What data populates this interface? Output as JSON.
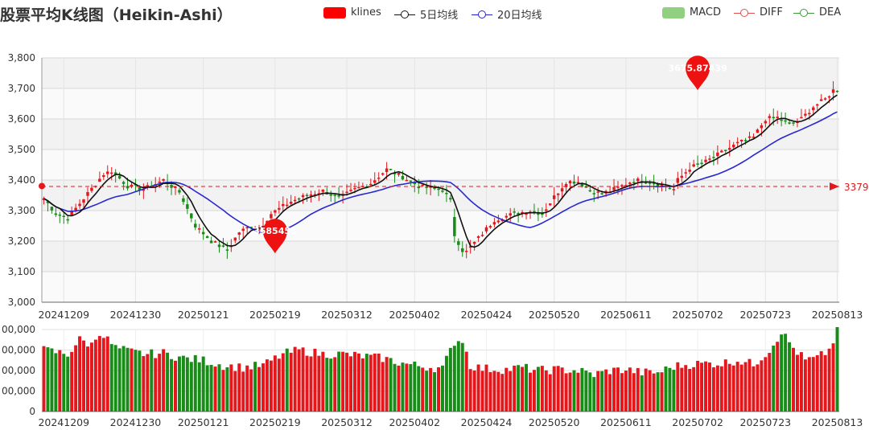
{
  "title": "股票平均K线图（Heikin-Ashi）",
  "legends": [
    {
      "label": "klines",
      "kind": "bar",
      "color": "#ff0000"
    },
    {
      "label": "5日均线",
      "kind": "line",
      "color": "#111111"
    },
    {
      "label": "20日均线",
      "kind": "line",
      "color": "#2222cc"
    },
    {
      "label": "MACD",
      "kind": "bar",
      "color": "#90d080"
    },
    {
      "label": "DIFF",
      "kind": "line",
      "color": "#e05050"
    },
    {
      "label": "DEA",
      "kind": "line",
      "color": "#3a9a3a"
    }
  ],
  "colors": {
    "up": "#e3171c",
    "down": "#178c17",
    "ma5": "#111111",
    "ma20": "#2929cf",
    "markline": "#e3171c",
    "pin": "#ee1111"
  },
  "chart_data": {
    "type": "heikin-ashi candlestick with volume",
    "x_tick_labels": [
      "20241209",
      "20241230",
      "20250121",
      "20250219",
      "20250312",
      "20250402",
      "20250424",
      "20250520",
      "20250611",
      "20250702",
      "20250723",
      "20250813"
    ],
    "price_axis": {
      "ylim": [
        3000,
        3800
      ],
      "ticks": [
        "3,000",
        "3,100",
        "3,200",
        "3,300",
        "3,400",
        "3,500",
        "3,600",
        "3,700",
        "3,800"
      ]
    },
    "volume_axis": {
      "ylim": [
        0,
        800000000
      ],
      "ticks": [
        "0",
        "00,000",
        "00,000",
        "00,000",
        "00,000"
      ]
    },
    "markline": {
      "value": 3379,
      "label": "3379"
    },
    "markpoints": [
      {
        "label": "3585455",
        "date_index": 58,
        "price": 3160
      },
      {
        "label": "3675.87439",
        "date_index": 164,
        "price": 3694
      }
    ],
    "price_anchors": [
      [
        0,
        3340
      ],
      [
        3,
        3290
      ],
      [
        6,
        3275
      ],
      [
        10,
        3340
      ],
      [
        15,
        3420
      ],
      [
        17,
        3430
      ],
      [
        21,
        3380
      ],
      [
        25,
        3370
      ],
      [
        30,
        3400
      ],
      [
        34,
        3360
      ],
      [
        38,
        3250
      ],
      [
        42,
        3200
      ],
      [
        46,
        3170
      ],
      [
        49,
        3230
      ],
      [
        52,
        3250
      ],
      [
        54,
        3240
      ],
      [
        57,
        3290
      ],
      [
        62,
        3330
      ],
      [
        66,
        3350
      ],
      [
        70,
        3365
      ],
      [
        74,
        3340
      ],
      [
        78,
        3370
      ],
      [
        82,
        3390
      ],
      [
        86,
        3435
      ],
      [
        90,
        3410
      ],
      [
        94,
        3380
      ],
      [
        98,
        3370
      ],
      [
        100,
        3370
      ],
      [
        102,
        3330
      ],
      [
        103,
        3220
      ],
      [
        105,
        3170
      ],
      [
        106,
        3165
      ],
      [
        109,
        3210
      ],
      [
        113,
        3270
      ],
      [
        118,
        3290
      ],
      [
        122,
        3300
      ],
      [
        125,
        3290
      ],
      [
        128,
        3345
      ],
      [
        131,
        3395
      ],
      [
        134,
        3395
      ],
      [
        137,
        3365
      ],
      [
        140,
        3355
      ],
      [
        144,
        3375
      ],
      [
        148,
        3400
      ],
      [
        152,
        3395
      ],
      [
        156,
        3380
      ],
      [
        158,
        3370
      ],
      [
        159,
        3400
      ],
      [
        162,
        3440
      ],
      [
        166,
        3460
      ],
      [
        170,
        3490
      ],
      [
        174,
        3520
      ],
      [
        178,
        3540
      ],
      [
        181,
        3600
      ],
      [
        184,
        3605
      ],
      [
        187,
        3580
      ],
      [
        190,
        3600
      ],
      [
        193,
        3640
      ],
      [
        196,
        3665
      ],
      [
        198,
        3694
      ]
    ],
    "volume_anchors": [
      [
        0,
        600
      ],
      [
        6,
        560
      ],
      [
        9,
        700
      ],
      [
        12,
        650
      ],
      [
        14,
        780
      ],
      [
        18,
        620
      ],
      [
        22,
        580
      ],
      [
        26,
        560
      ],
      [
        30,
        570
      ],
      [
        35,
        520
      ],
      [
        40,
        500
      ],
      [
        45,
        450
      ],
      [
        50,
        430
      ],
      [
        55,
        450
      ],
      [
        60,
        560
      ],
      [
        64,
        600
      ],
      [
        70,
        560
      ],
      [
        75,
        560
      ],
      [
        80,
        540
      ],
      [
        85,
        520
      ],
      [
        90,
        470
      ],
      [
        95,
        440
      ],
      [
        100,
        420
      ],
      [
        103,
        680
      ],
      [
        105,
        700
      ],
      [
        107,
        450
      ],
      [
        110,
        420
      ],
      [
        116,
        410
      ],
      [
        120,
        430
      ],
      [
        124,
        400
      ],
      [
        128,
        410
      ],
      [
        134,
        400
      ],
      [
        138,
        360
      ],
      [
        142,
        400
      ],
      [
        146,
        410
      ],
      [
        150,
        380
      ],
      [
        154,
        380
      ],
      [
        158,
        440
      ],
      [
        162,
        460
      ],
      [
        166,
        470
      ],
      [
        170,
        470
      ],
      [
        174,
        500
      ],
      [
        178,
        460
      ],
      [
        182,
        600
      ],
      [
        185,
        780
      ],
      [
        188,
        620
      ],
      [
        191,
        500
      ],
      [
        194,
        520
      ],
      [
        197,
        600
      ],
      [
        199,
        780
      ]
    ]
  }
}
